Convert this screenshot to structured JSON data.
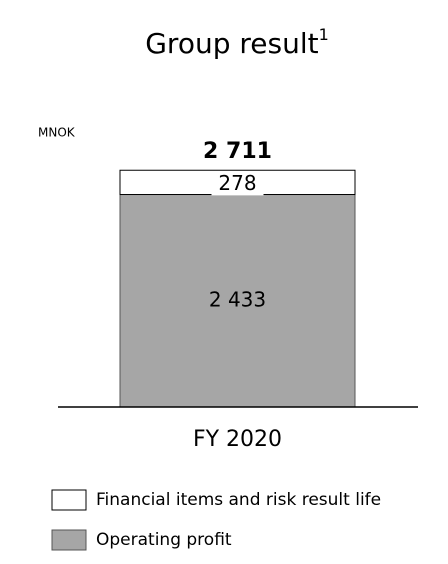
{
  "chart_data": {
    "type": "stacked_bar",
    "title": "Group result",
    "title_note": "1",
    "ylabel": "MNOK",
    "categories": [
      "FY 2020"
    ],
    "series": [
      {
        "name": "Operating profit",
        "color": "#a6a6a6",
        "values": [
          2433
        ],
        "value_labels": [
          "2 433"
        ]
      },
      {
        "name": "Financial items and risk result life",
        "color": "#ffffff",
        "values": [
          278
        ],
        "value_labels": [
          "278"
        ]
      }
    ],
    "totals": [
      2711
    ],
    "total_labels": [
      "2 711"
    ],
    "ylim": [
      0,
      3000
    ]
  }
}
